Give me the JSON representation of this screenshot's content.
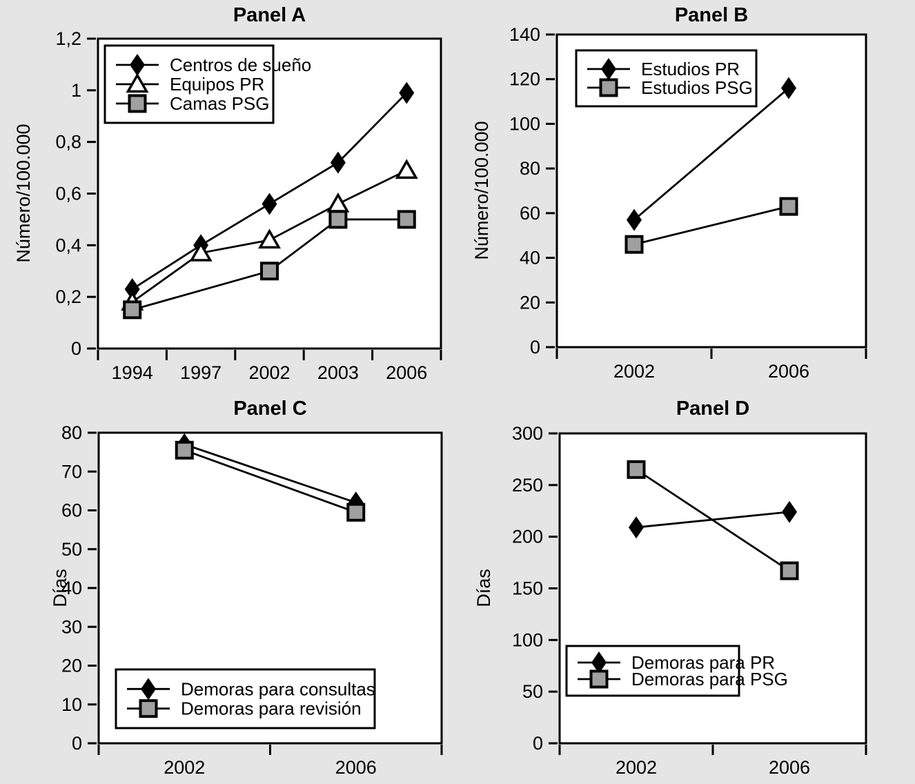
{
  "figure": {
    "background": "#e5e5e5",
    "plot_background": "#ffffff",
    "line_color": "#000000",
    "marker_gray_fill": "#a0a0a0",
    "frame_color": "#000000"
  },
  "chart_data": [
    {
      "type": "line",
      "title": "Panel A",
      "xlabel": "",
      "ylabel": "Número/100.000",
      "categories": [
        "1994",
        "1997",
        "2002",
        "2003",
        "2006"
      ],
      "ylim": [
        0,
        1.2
      ],
      "ytick_step": 0.2,
      "ytick_labels_top_to_bottom": [
        "1,2",
        "1",
        "0,8",
        "0,6",
        "0,4",
        "0,2",
        "0"
      ],
      "grid": false,
      "legend_position": "top-left",
      "series": [
        {
          "name": "Centros de sueño",
          "marker": "diamond-filled-black",
          "values": [
            0.23,
            0.4,
            0.56,
            0.72,
            0.99
          ]
        },
        {
          "name": "Equipos PR",
          "marker": "triangle-open-white",
          "values": [
            0.18,
            0.37,
            0.42,
            0.56,
            0.69
          ]
        },
        {
          "name": "Camas PSG",
          "marker": "square-filled-gray",
          "values": [
            0.15,
            null,
            0.3,
            0.5,
            0.5
          ]
        }
      ]
    },
    {
      "type": "line",
      "title": "Panel B",
      "xlabel": "",
      "ylabel": "Número/100.000",
      "categories": [
        "2002",
        "2006"
      ],
      "ylim": [
        0,
        140
      ],
      "ytick_step": 20,
      "ytick_labels_top_to_bottom": [
        "140",
        "120",
        "100",
        "80",
        "60",
        "40",
        "20",
        "0"
      ],
      "grid": false,
      "legend_position": "top-left",
      "series": [
        {
          "name": "Estudios PR",
          "marker": "diamond-filled-black",
          "values": [
            57,
            116
          ]
        },
        {
          "name": "Estudios PSG",
          "marker": "square-filled-gray",
          "values": [
            46,
            63
          ]
        }
      ]
    },
    {
      "type": "line",
      "title": "Panel C",
      "xlabel": "",
      "ylabel": "Días",
      "categories": [
        "2002",
        "2006"
      ],
      "ylim": [
        0,
        80
      ],
      "ytick_step": 10,
      "ytick_labels_top_to_bottom": [
        "80",
        "70",
        "60",
        "50",
        "40",
        "30",
        "20",
        "10",
        "0"
      ],
      "grid": false,
      "legend_position": "bottom-left",
      "series": [
        {
          "name": "Demoras para consultas",
          "marker": "diamond-filled-black",
          "values": [
            77,
            62
          ]
        },
        {
          "name": "Demoras para revisión",
          "marker": "square-filled-gray",
          "values": [
            75.5,
            59.5
          ]
        }
      ]
    },
    {
      "type": "line",
      "title": "Panel D",
      "xlabel": "",
      "ylabel": "Días",
      "categories": [
        "2002",
        "2006"
      ],
      "ylim": [
        0,
        300
      ],
      "ytick_step": 50,
      "ytick_labels_top_to_bottom": [
        "300",
        "250",
        "200",
        "150",
        "100",
        "50",
        "0"
      ],
      "grid": false,
      "legend_position": "bottom-left",
      "series": [
        {
          "name": "Demoras para PR",
          "marker": "diamond-filled-black",
          "values": [
            209,
            224
          ]
        },
        {
          "name": "Demoras para PSG",
          "marker": "square-filled-gray",
          "values": [
            265,
            167
          ]
        }
      ]
    }
  ]
}
